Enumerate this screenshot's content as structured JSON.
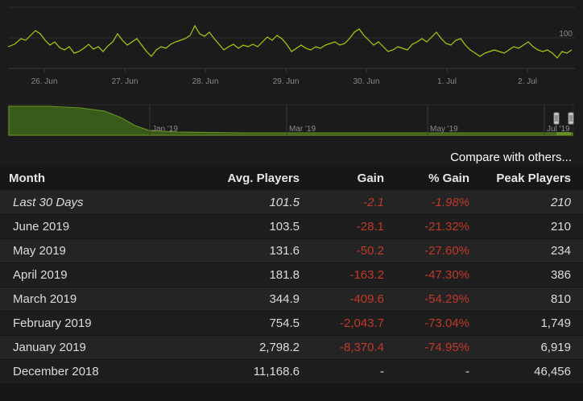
{
  "chart": {
    "top_axis_label": "100",
    "top_ticks": [
      "26. Jun",
      "27. Jun",
      "28. Jun",
      "29. Jun",
      "30. Jun",
      "1. Jul",
      "2. Jul"
    ],
    "nav_ticks": [
      "Jan '19",
      "Mar '19",
      "May '19",
      "Jul '19"
    ],
    "line_color": "#a4d007",
    "nav_fill_color": "#3a5a1a"
  },
  "compare_link": "Compare with others...",
  "table": {
    "headers": [
      "Month",
      "Avg. Players",
      "Gain",
      "% Gain",
      "Peak Players"
    ],
    "rows": [
      {
        "month": "Last 30 Days",
        "avg": "101.5",
        "gain": "-2.1",
        "pct": "-1.98%",
        "peak": "210"
      },
      {
        "month": "June 2019",
        "avg": "103.5",
        "gain": "-28.1",
        "pct": "-21.32%",
        "peak": "210"
      },
      {
        "month": "May 2019",
        "avg": "131.6",
        "gain": "-50.2",
        "pct": "-27.60%",
        "peak": "234"
      },
      {
        "month": "April 2019",
        "avg": "181.8",
        "gain": "-163.2",
        "pct": "-47.30%",
        "peak": "386"
      },
      {
        "month": "March 2019",
        "avg": "344.9",
        "gain": "-409.6",
        "pct": "-54.29%",
        "peak": "810"
      },
      {
        "month": "February 2019",
        "avg": "754.5",
        "gain": "-2,043.7",
        "pct": "-73.04%",
        "peak": "1,749"
      },
      {
        "month": "January 2019",
        "avg": "2,798.2",
        "gain": "-8,370.4",
        "pct": "-74.95%",
        "peak": "6,919"
      },
      {
        "month": "December 2018",
        "avg": "11,168.6",
        "gain": "-",
        "pct": "-",
        "peak": "46,456"
      }
    ]
  }
}
